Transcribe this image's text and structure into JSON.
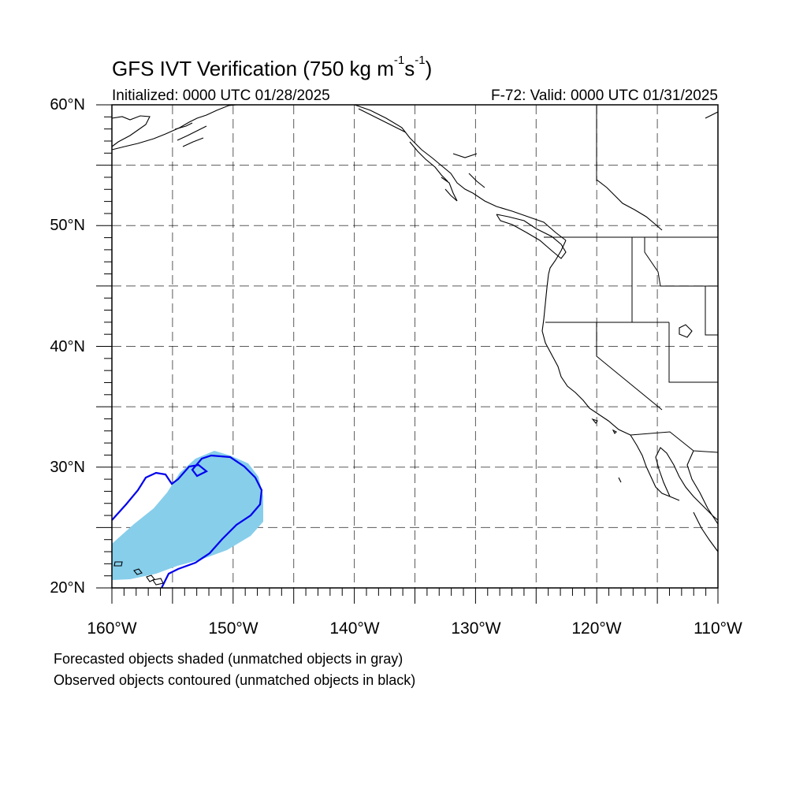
{
  "title": {
    "main": "GFS IVT Verification (750 kg m",
    "sup1": "-1",
    "mid": "s",
    "sup2": "-1",
    "end": ")"
  },
  "init_text": "Initialized: 0000 UTC 01/28/2025",
  "valid_text": "F-72: Valid: 0000 UTC 01/31/2025",
  "lat_labels": [
    "60°N",
    "50°N",
    "40°N",
    "30°N",
    "20°N"
  ],
  "lon_labels": [
    "160°W",
    "150°W",
    "140°W",
    "130°W",
    "120°W",
    "110°W"
  ],
  "notes": [
    "Forecasted objects shaded (unmatched objects in gray)",
    "Observed objects contoured (unmatched objects in black)"
  ],
  "colors": {
    "forecast_fill": "#87ceeb",
    "observed_contour": "#0000ee",
    "coastline": "#000000",
    "grid": "#000000"
  },
  "map": {
    "lon_range": [
      -160,
      -110
    ],
    "lat_range": [
      20,
      60
    ],
    "grid_lon_step": 5,
    "grid_lat_step": 5
  }
}
